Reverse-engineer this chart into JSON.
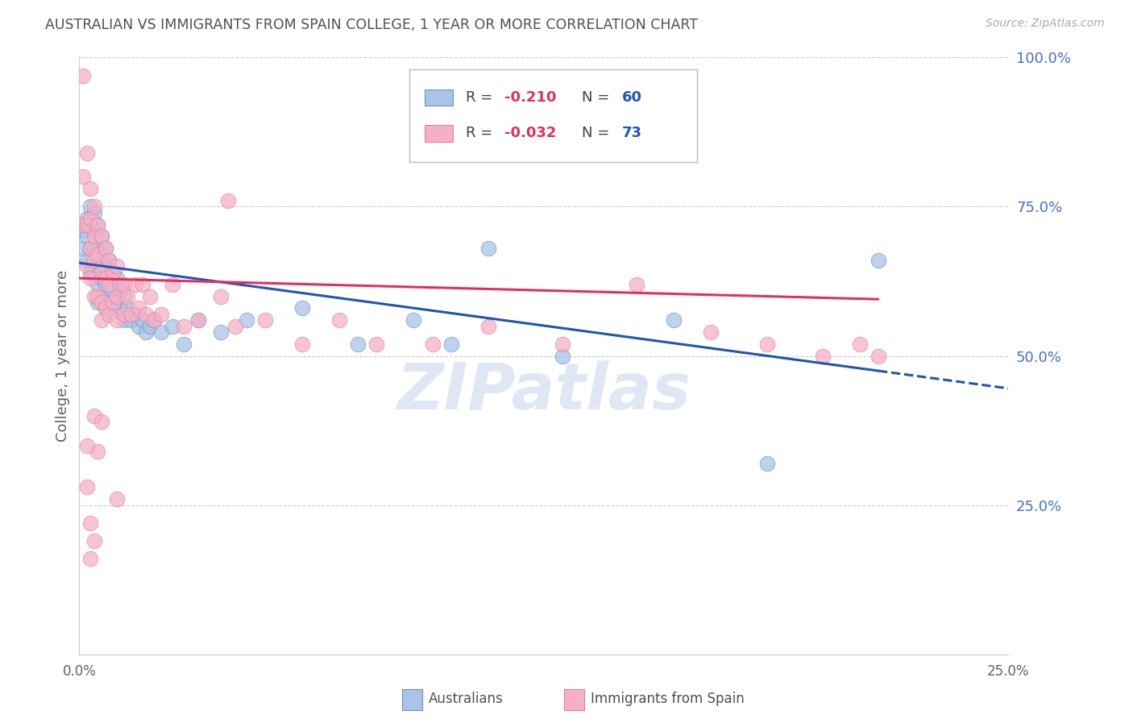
{
  "title": "AUSTRALIAN VS IMMIGRANTS FROM SPAIN COLLEGE, 1 YEAR OR MORE CORRELATION CHART",
  "source": "Source: ZipAtlas.com",
  "ylabel": "College, 1 year or more",
  "xlim": [
    0.0,
    0.25
  ],
  "ylim": [
    0.0,
    1.0
  ],
  "blue_fill": "#a8c4e8",
  "blue_edge": "#7090c0",
  "pink_fill": "#f5b0c5",
  "pink_edge": "#e080a0",
  "blue_line": "#2255b0",
  "pink_line": "#e03060",
  "title_color": "#505050",
  "source_color": "#aaaaaa",
  "right_label_color": "#4472C4",
  "axis_label_color": "#606060",
  "grid_color": "#cccccc",
  "legend_r_color": "#e03060",
  "legend_n_color": "#2255b0",
  "legend_text_color": "#404040",
  "australians_label": "Australians",
  "spain_label": "Immigrants from Spain",
  "aus_x": [
    0.001,
    0.001,
    0.002,
    0.002,
    0.002,
    0.003,
    0.003,
    0.003,
    0.003,
    0.004,
    0.004,
    0.004,
    0.004,
    0.005,
    0.005,
    0.005,
    0.005,
    0.005,
    0.006,
    0.006,
    0.006,
    0.006,
    0.007,
    0.007,
    0.007,
    0.007,
    0.008,
    0.008,
    0.008,
    0.009,
    0.009,
    0.01,
    0.01,
    0.011,
    0.011,
    0.012,
    0.012,
    0.013,
    0.014,
    0.015,
    0.016,
    0.017,
    0.018,
    0.019,
    0.02,
    0.022,
    0.025,
    0.028,
    0.032,
    0.038,
    0.045,
    0.06,
    0.075,
    0.09,
    0.1,
    0.11,
    0.13,
    0.16,
    0.185,
    0.215
  ],
  "aus_y": [
    0.71,
    0.68,
    0.73,
    0.7,
    0.66,
    0.75,
    0.72,
    0.68,
    0.64,
    0.74,
    0.71,
    0.68,
    0.64,
    0.72,
    0.68,
    0.65,
    0.62,
    0.59,
    0.7,
    0.67,
    0.63,
    0.6,
    0.68,
    0.65,
    0.62,
    0.58,
    0.66,
    0.63,
    0.6,
    0.64,
    0.61,
    0.63,
    0.59,
    0.61,
    0.58,
    0.6,
    0.56,
    0.58,
    0.56,
    0.57,
    0.55,
    0.56,
    0.54,
    0.55,
    0.56,
    0.54,
    0.55,
    0.52,
    0.56,
    0.54,
    0.56,
    0.58,
    0.52,
    0.56,
    0.52,
    0.68,
    0.5,
    0.56,
    0.32,
    0.66
  ],
  "spain_x": [
    0.001,
    0.001,
    0.001,
    0.002,
    0.002,
    0.002,
    0.003,
    0.003,
    0.003,
    0.003,
    0.004,
    0.004,
    0.004,
    0.004,
    0.005,
    0.005,
    0.005,
    0.006,
    0.006,
    0.006,
    0.006,
    0.007,
    0.007,
    0.007,
    0.008,
    0.008,
    0.008,
    0.009,
    0.009,
    0.01,
    0.01,
    0.01,
    0.011,
    0.012,
    0.012,
    0.013,
    0.014,
    0.015,
    0.016,
    0.017,
    0.018,
    0.019,
    0.02,
    0.022,
    0.025,
    0.028,
    0.032,
    0.038,
    0.042,
    0.05,
    0.06,
    0.07,
    0.08,
    0.095,
    0.11,
    0.13,
    0.15,
    0.17,
    0.185,
    0.2,
    0.21,
    0.215,
    0.002,
    0.003,
    0.004,
    0.004,
    0.005,
    0.006,
    0.04,
    0.16,
    0.002,
    0.003,
    0.01
  ],
  "spain_y": [
    0.97,
    0.72,
    0.8,
    0.84,
    0.72,
    0.65,
    0.78,
    0.73,
    0.68,
    0.63,
    0.75,
    0.7,
    0.66,
    0.6,
    0.72,
    0.67,
    0.6,
    0.7,
    0.64,
    0.59,
    0.56,
    0.68,
    0.63,
    0.58,
    0.66,
    0.62,
    0.57,
    0.64,
    0.59,
    0.65,
    0.6,
    0.56,
    0.62,
    0.62,
    0.57,
    0.6,
    0.57,
    0.62,
    0.58,
    0.62,
    0.57,
    0.6,
    0.56,
    0.57,
    0.62,
    0.55,
    0.56,
    0.6,
    0.55,
    0.56,
    0.52,
    0.56,
    0.52,
    0.52,
    0.55,
    0.52,
    0.62,
    0.54,
    0.52,
    0.5,
    0.52,
    0.5,
    0.28,
    0.22,
    0.19,
    0.4,
    0.34,
    0.39,
    0.76,
    0.93,
    0.35,
    0.16,
    0.26
  ],
  "aus_trend_x0": 0.001,
  "aus_trend_x1": 0.215,
  "aus_trend_y0": 0.655,
  "aus_trend_y1": 0.475,
  "spain_trend_x0": 0.001,
  "spain_trend_x1": 0.215,
  "spain_trend_y0": 0.63,
  "spain_trend_y1": 0.595
}
